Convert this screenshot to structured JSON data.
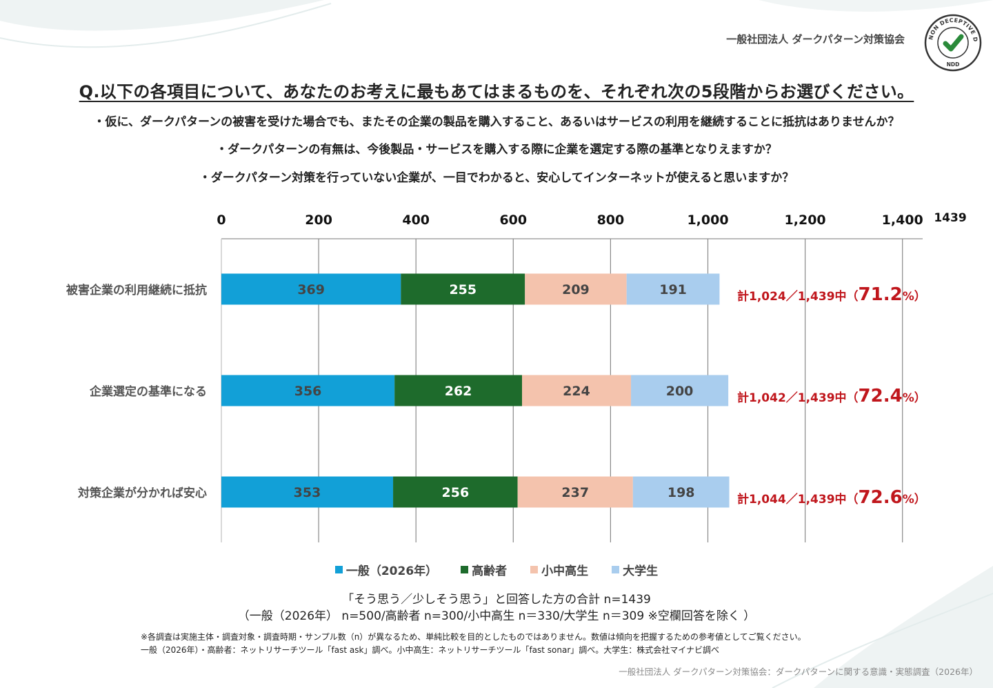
{
  "header": {
    "org": "一般社団法人 ダークパターン対策協会",
    "badge_ring": "NON DECEPTIVE DESIGN",
    "badge_code": "NDD"
  },
  "question": "Q.以下の各項目について、あなたのお考えに最もあてはまるものを、それぞれ次の5段階からお選びください。",
  "subquestions": [
    "・仮に、ダークパターンの被害を受けた場合でも、またその企業の製品を購入すること、あるいはサービスの利用を継続することに抵抗はありませんか？",
    "・ダークパターンの有無は、今後製品・サービスを購入する際に企業を選定する際の基準となりえますか？",
    "・ダークパターン対策を行っていない企業が、一目でわかると、安心してインターネットが使えると思いますか？"
  ],
  "chart_data": {
    "type": "bar",
    "orientation": "horizontal",
    "stacked": true,
    "categories": [
      "被害企業の利用継続に抵抗",
      "企業選定の基準になる",
      "対策企業が分かれば安心"
    ],
    "series": [
      {
        "name": "一般（2026年）",
        "values": [
          369,
          356,
          353
        ],
        "color": "#12a0d7"
      },
      {
        "name": "高齢者",
        "values": [
          255,
          262,
          256
        ],
        "color": "#1e6b2c"
      },
      {
        "name": "小中高生",
        "values": [
          209,
          224,
          237
        ],
        "color": "#f4c3ad"
      },
      {
        "name": "大学生",
        "values": [
          191,
          200,
          198
        ],
        "color": "#a9cdee"
      }
    ],
    "xlim": [
      0,
      1439
    ],
    "xticks": [
      0,
      200,
      400,
      600,
      800,
      1000,
      1200,
      1400
    ],
    "xtick_labels": [
      "0",
      "200",
      "400",
      "600",
      "800",
      "1,000",
      "1,200",
      "1,400"
    ],
    "xmax_label": "1439",
    "totals": [
      {
        "prefix": "計1,024／1,439中（",
        "pct": "71.2",
        "suffix": "%）"
      },
      {
        "prefix": "計1,042／1,439中（",
        "pct": "72.4",
        "suffix": "%）"
      },
      {
        "prefix": "計1,044／1,439中（",
        "pct": "72.6",
        "suffix": "%）"
      }
    ],
    "grid": true,
    "legend_position": "bottom",
    "total_color": "#c0161c"
  },
  "notes": {
    "line1": "「そう思う／少しそう思う」と回答した方の合計 n=1439",
    "line2": "（一般（2026年） n=500/高齢者 n=300/小中高生 n＝330/大学生 n＝309 ※空欄回答を除く ）",
    "fine1": "※各調査は実施主体・調査対象・調査時期・サンプル数（n）が異なるため、単純比較を目的としたものではありません。数値は傾向を把握するための参考値としてご覧ください。",
    "fine2": "一般（2026年）・高齢者：ネットリサーチツール「fast ask」調べ。小中高生：ネットリサーチツール「fast sonar」調べ。大学生：株式会社マイナビ調べ",
    "source": "一般社団法人 ダークパターン対策協会：ダークパターンに関する意識・実態調査（2026年）"
  }
}
